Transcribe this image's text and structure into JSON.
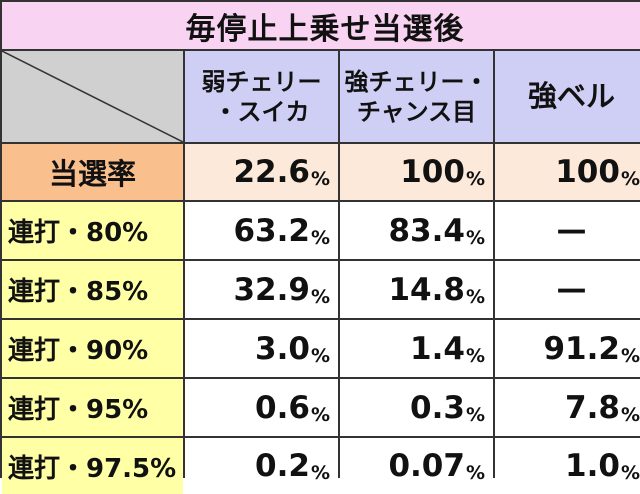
{
  "table": {
    "title": "毎停止上乗せ当選後",
    "columns": [
      {
        "lines": [
          "弱チェリー",
          "・スイカ"
        ]
      },
      {
        "lines": [
          "強チェリー・",
          "チャンス目"
        ]
      },
      {
        "lines": [
          "強ベル"
        ]
      }
    ],
    "rate_row": {
      "label": "当選率",
      "values": [
        "22.6",
        "100",
        "100"
      ]
    },
    "rows": [
      {
        "label": "連打・80%",
        "values": [
          "63.2",
          "83.4",
          "—"
        ]
      },
      {
        "label": "連打・85%",
        "values": [
          "32.9",
          "14.8",
          "—"
        ]
      },
      {
        "label": "連打・90%",
        "values": [
          "3.0",
          "1.4",
          "91.2"
        ]
      },
      {
        "label": "連打・95%",
        "values": [
          "0.6",
          "0.3",
          "7.8"
        ]
      },
      {
        "label": "連打・97.5%",
        "values": [
          "0.2",
          "0.07",
          "1.0"
        ]
      }
    ],
    "unit": "%",
    "colors": {
      "title_bg": "#f9d4f2",
      "column_header_bg": "#cfcff5",
      "rate_label_bg": "#f9bf8c",
      "rate_value_bg": "#fde9d9",
      "row_label_bg": "#ffffa5",
      "corner_bg": "#d0d0d0",
      "border": "#333333"
    }
  }
}
